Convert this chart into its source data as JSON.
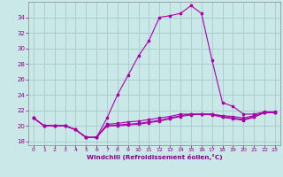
{
  "title": "",
  "xlabel": "Windchill (Refroidissement éolien,°C)",
  "ylabel": "",
  "background_color": "#cbe8e8",
  "grid_color": "#aacfcf",
  "line_color": "#aa00aa",
  "hours": [
    0,
    1,
    2,
    3,
    4,
    5,
    6,
    7,
    8,
    9,
    10,
    11,
    12,
    13,
    14,
    15,
    16,
    17,
    18,
    19,
    20,
    21,
    22,
    23
  ],
  "curve1": [
    21.0,
    20.0,
    20.0,
    20.0,
    19.5,
    18.5,
    18.5,
    21.0,
    24.0,
    26.5,
    29.0,
    31.0,
    34.0,
    34.2,
    34.5,
    35.5,
    34.5,
    28.5,
    23.0,
    22.5,
    21.5,
    21.5,
    21.8,
    21.8
  ],
  "curve2": [
    21.0,
    20.0,
    20.0,
    20.0,
    19.5,
    18.5,
    18.5,
    20.2,
    20.3,
    20.5,
    20.6,
    20.8,
    21.0,
    21.2,
    21.5,
    21.5,
    21.5,
    21.5,
    21.3,
    21.2,
    21.0,
    21.3,
    21.7,
    21.7
  ],
  "curve3": [
    21.0,
    20.0,
    20.0,
    20.0,
    19.5,
    18.5,
    18.5,
    20.0,
    20.1,
    20.2,
    20.3,
    20.5,
    20.7,
    21.0,
    21.3,
    21.5,
    21.5,
    21.5,
    21.2,
    21.0,
    20.8,
    21.2,
    21.7,
    21.7
  ],
  "curve4": [
    21.0,
    20.0,
    20.0,
    20.0,
    19.5,
    18.5,
    18.5,
    20.0,
    20.0,
    20.1,
    20.2,
    20.4,
    20.6,
    20.9,
    21.2,
    21.4,
    21.5,
    21.4,
    21.1,
    20.9,
    20.7,
    21.1,
    21.7,
    21.7
  ],
  "ylim": [
    17.5,
    36.0
  ],
  "yticks": [
    18,
    20,
    22,
    24,
    26,
    28,
    30,
    32,
    34
  ],
  "xticks": [
    0,
    1,
    2,
    3,
    4,
    5,
    6,
    7,
    8,
    9,
    10,
    11,
    12,
    13,
    14,
    15,
    16,
    17,
    18,
    19,
    20,
    21,
    22,
    23
  ],
  "spine_color": "#888888"
}
